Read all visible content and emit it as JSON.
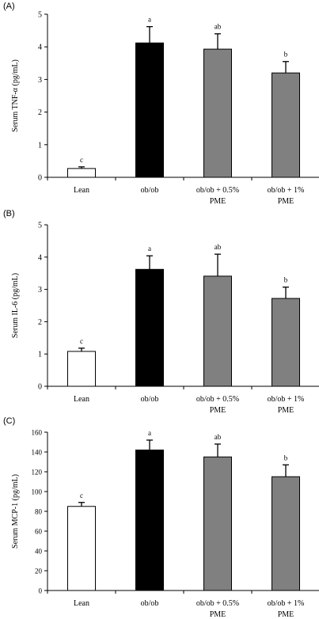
{
  "chart_data": [
    {
      "type": "bar",
      "panel_label": "(A)",
      "ylabel": "Serum TNF-α (pg/mL)",
      "ylim": [
        0,
        5
      ],
      "yticks": [
        0,
        1,
        2,
        3,
        4,
        5
      ],
      "categories": [
        [
          "Lean"
        ],
        [
          "ob/ob"
        ],
        [
          "ob/ob + 0.5%",
          "PME"
        ],
        [
          "ob/ob + 1%",
          "PME"
        ]
      ],
      "values": [
        0.27,
        4.12,
        3.93,
        3.2
      ],
      "errors": [
        0.05,
        0.5,
        0.47,
        0.35
      ],
      "letters": [
        "c",
        "a",
        "ab",
        "b"
      ],
      "bar_colors": [
        "#ffffff",
        "#000000",
        "#808080",
        "#808080"
      ]
    },
    {
      "type": "bar",
      "panel_label": "(B)",
      "ylabel": "Serum IL-6 (pg/mL)",
      "ylim": [
        0,
        5
      ],
      "yticks": [
        0,
        1,
        2,
        3,
        4,
        5
      ],
      "categories": [
        [
          "Lean"
        ],
        [
          "ob/ob"
        ],
        [
          "ob/ob + 0.5%",
          "PME"
        ],
        [
          "ob/ob + 1%",
          "PME"
        ]
      ],
      "values": [
        1.08,
        3.62,
        3.41,
        2.72
      ],
      "errors": [
        0.1,
        0.42,
        0.68,
        0.35
      ],
      "letters": [
        "c",
        "a",
        "ab",
        "b"
      ],
      "bar_colors": [
        "#ffffff",
        "#000000",
        "#808080",
        "#808080"
      ]
    },
    {
      "type": "bar",
      "panel_label": "(C)",
      "ylabel": "Serum MCP-1 (pg/mL)",
      "ylim": [
        0,
        160
      ],
      "yticks": [
        0,
        20,
        40,
        60,
        80,
        100,
        120,
        140,
        160
      ],
      "categories": [
        [
          "Lean"
        ],
        [
          "ob/ob"
        ],
        [
          "ob/ob + 0.5%",
          "PME"
        ],
        [
          "ob/ob + 1%",
          "PME"
        ]
      ],
      "values": [
        85,
        142,
        135,
        115
      ],
      "errors": [
        4,
        10,
        13,
        12
      ],
      "letters": [
        "c",
        "a",
        "ab",
        "b"
      ],
      "bar_colors": [
        "#ffffff",
        "#000000",
        "#808080",
        "#808080"
      ]
    }
  ]
}
